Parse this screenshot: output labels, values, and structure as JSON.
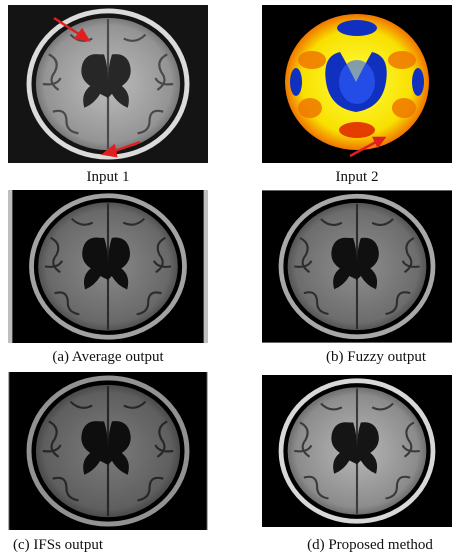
{
  "figure": {
    "panels": [
      {
        "caption": "Input 1"
      },
      {
        "caption": "Input 2"
      },
      {
        "caption": "(a) Average output"
      },
      {
        "caption": "(b) Fuzzy output"
      },
      {
        "caption": "(c) IFSs output"
      },
      {
        "caption": "(d) Proposed method"
      }
    ]
  }
}
